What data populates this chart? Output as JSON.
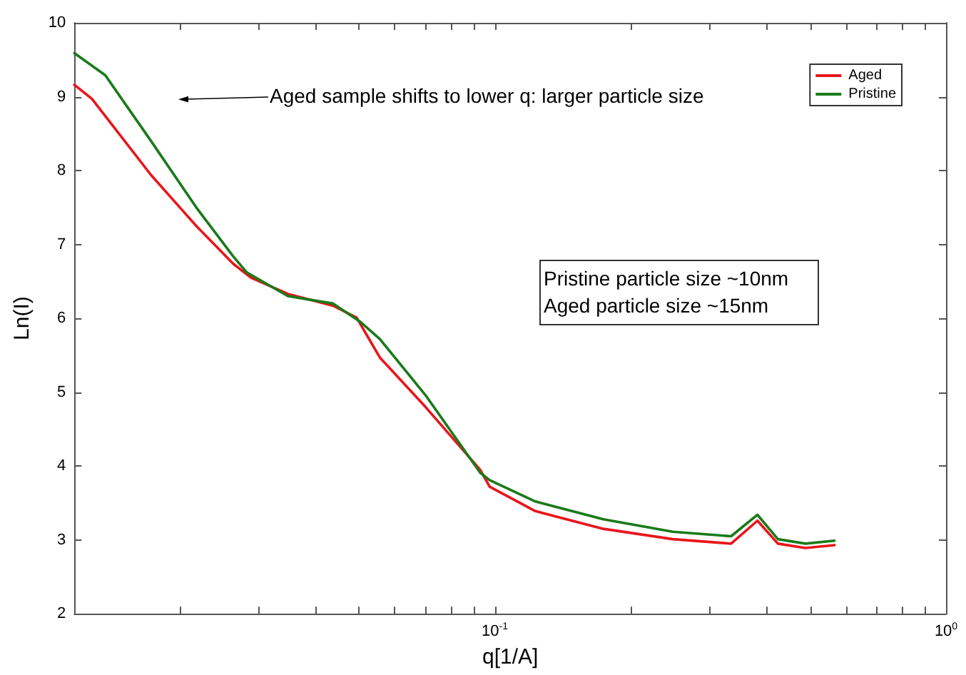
{
  "chart_data": {
    "type": "line",
    "xlabel": "q[1/A]",
    "ylabel": "Ln(I)",
    "annotations": [
      "Aged sample shifts to lower q: larger particle size",
      "Pristine particle size ~10nm\nAged particle size ~15nm"
    ],
    "log": "x",
    "xlim": [
      0.0117,
      1
    ],
    "ylim": [
      2,
      10
    ],
    "xticks": [
      {
        "value": 0.02,
        "label": null
      },
      {
        "value": 0.03,
        "label": null
      },
      {
        "value": 0.04,
        "label": null
      },
      {
        "value": 0.05,
        "label": null
      },
      {
        "value": 0.06,
        "label": null
      },
      {
        "value": 0.07,
        "label": null
      },
      {
        "value": 0.08,
        "label": null
      },
      {
        "value": 0.09,
        "label": null
      },
      {
        "value": 0.1,
        "label": "10$^{-1}$"
      },
      {
        "value": 0.2,
        "label": null
      },
      {
        "value": 0.3,
        "label": null
      },
      {
        "value": 0.4,
        "label": null
      },
      {
        "value": 0.5,
        "label": null
      },
      {
        "value": 0.6,
        "label": null
      },
      {
        "value": 0.7,
        "label": null
      },
      {
        "value": 0.8,
        "label": null
      },
      {
        "value": 0.9,
        "label": null
      },
      {
        "value": 1,
        "label": "10$^{0}$"
      }
    ],
    "yticks": [
      2,
      3,
      4,
      5,
      6,
      7,
      8,
      9,
      10
    ],
    "grid": false,
    "legend": "top right",
    "marker": "none",
    "line_style": "solid",
    "series": [
      {
        "name": "Aged",
        "color": "#e8161b",
        "x": [
          0.0117,
          0.0128,
          0.0173,
          0.0218,
          0.0263,
          0.0288,
          0.0348,
          0.0438,
          0.0494,
          0.0556,
          0.0702,
          0.0928,
          0.0974,
          0.123,
          0.174,
          0.248,
          0.334,
          0.382,
          0.424,
          0.488,
          0.566
        ],
        "values": [
          9.16,
          8.97,
          7.94,
          7.25,
          6.74,
          6.55,
          6.33,
          6.17,
          6.01,
          5.47,
          4.8,
          3.95,
          3.72,
          3.39,
          3.15,
          3.01,
          2.95,
          3.26,
          2.95,
          2.89,
          2.93
        ]
      },
      {
        "name": "Pristine",
        "color": "#1a7a1a",
        "x": [
          0.0117,
          0.0137,
          0.0173,
          0.0218,
          0.0263,
          0.0282,
          0.0348,
          0.0438,
          0.0504,
          0.0556,
          0.0702,
          0.0928,
          0.0974,
          0.123,
          0.174,
          0.248,
          0.334,
          0.382,
          0.424,
          0.488,
          0.566
        ],
        "values": [
          9.59,
          9.29,
          8.4,
          7.5,
          6.84,
          6.62,
          6.3,
          6.2,
          5.95,
          5.72,
          4.96,
          3.91,
          3.81,
          3.52,
          3.28,
          3.11,
          3.05,
          3.34,
          3.01,
          2.95,
          2.99
        ]
      }
    ]
  }
}
